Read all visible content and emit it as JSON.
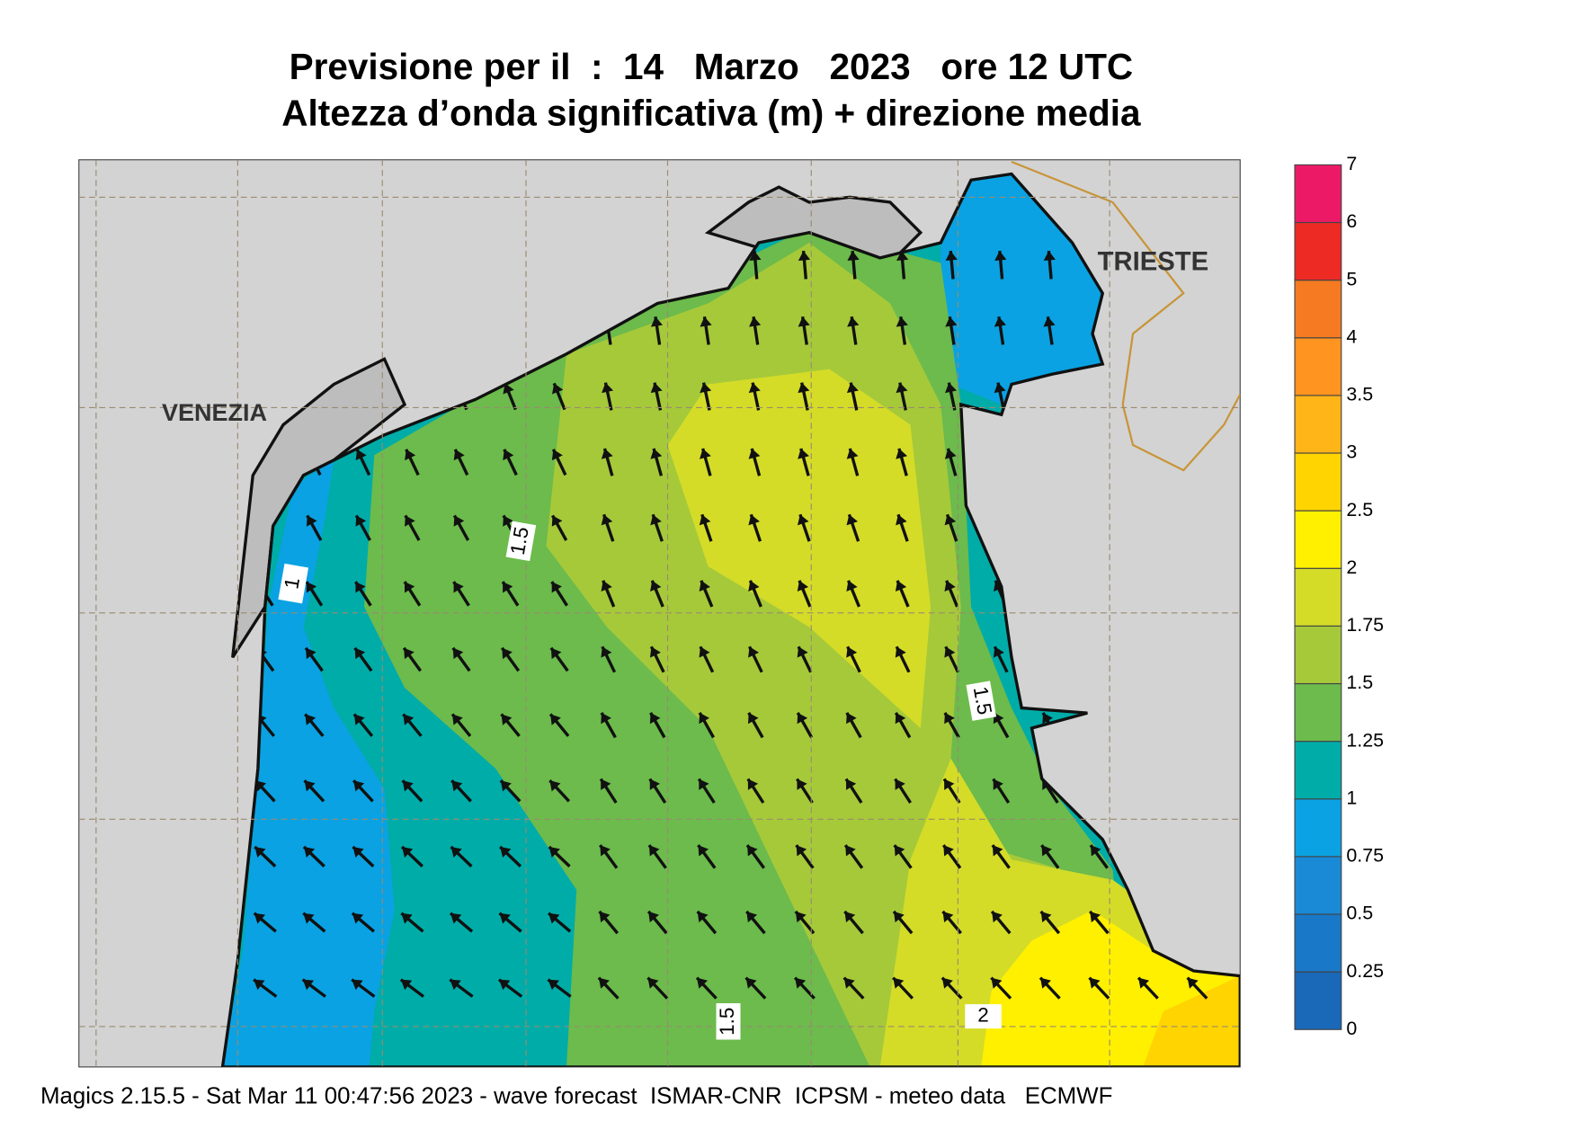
{
  "header": {
    "title": "Previsione per il  :  14   Marzo   2023   ore 12 UTC",
    "subtitle": "Altezza d’onda significativa (m) + direzione media"
  },
  "map": {
    "places": [
      "VENEZIA",
      "TRIESTE"
    ],
    "contour_labels": [
      "1",
      "1.5",
      "1.5",
      "1.5",
      "2"
    ]
  },
  "colorbar": {
    "ticks": [
      "0",
      "0.25",
      "0.5",
      "0.75",
      "1",
      "1.25",
      "1.5",
      "1.75",
      "2",
      "2.5",
      "3",
      "3.5",
      "4",
      "5",
      "6",
      "7"
    ],
    "colors": [
      "#1a68b8",
      "#1a78c8",
      "#1a8ad6",
      "#0aa2e2",
      "#00aca8",
      "#6cbb4c",
      "#a6c93a",
      "#d4dc28",
      "#fff000",
      "#ffd400",
      "#ffb418",
      "#ff9420",
      "#f57a22",
      "#ee2a24",
      "#ec1a66"
    ]
  },
  "footer": "Magics 2.15.5 - Sat Mar 11 00:47:56 2023 - wave forecast  ISMAR-CNR  ICPSM - meteo data   ECMWF"
}
